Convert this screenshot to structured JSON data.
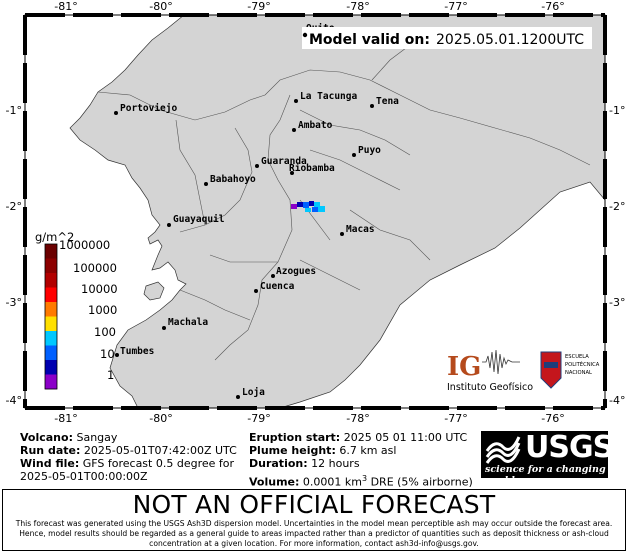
{
  "map": {
    "valid_label": "Model valid on:",
    "valid_time": "2025.05.01.1200UTC",
    "lon_ticks": [
      "-81°",
      "-80°",
      "-79°",
      "-78°",
      "-77°",
      "-76°"
    ],
    "lat_ticks": [
      "-1°",
      "-2°",
      "-3°",
      "-4°"
    ],
    "colorbar": {
      "unit": "g/m^2",
      "labels": [
        "1000000",
        "100000",
        "10000",
        "1000",
        "100",
        "10",
        "1"
      ],
      "colors": [
        "#6b0000",
        "#8c0000",
        "#b20000",
        "#ff0000",
        "#ff7a00",
        "#ffe000",
        "#00c8ff",
        "#0060ff",
        "#0000b0",
        "#8b00c8"
      ]
    },
    "cities": [
      {
        "name": "Quito"
      },
      {
        "name": "Portoviejo"
      },
      {
        "name": "La Tacunga"
      },
      {
        "name": "Tena"
      },
      {
        "name": "Ambato"
      },
      {
        "name": "Puyo"
      },
      {
        "name": "Guaranda"
      },
      {
        "name": "Riobamba"
      },
      {
        "name": "Babahoyo"
      },
      {
        "name": "Guayaquil"
      },
      {
        "name": "Macas"
      },
      {
        "name": "Azogues"
      },
      {
        "name": "Cuenca"
      },
      {
        "name": "Machala"
      },
      {
        "name": "Tumbes"
      },
      {
        "name": "Loja"
      }
    ],
    "logos": {
      "ig_text": "Instituto Geofísico",
      "epn_text": "ESCUELA POLITÉCNICA NACIONAL"
    }
  },
  "info": {
    "volcano_label": "Volcano:",
    "volcano": "Sangay",
    "run_label": "Run date:",
    "run_date": "2025-05-01T07:42:00Z UTC",
    "wind_label": "Wind file:",
    "wind_file": "GFS forecast 0.5 degree for",
    "wind_file_2": "2025-05-01T00:00:00Z",
    "eruption_label": "Eruption start:",
    "eruption_start": "2025 05 01 11:00 UTC",
    "plume_label": "Plume height:",
    "plume_height": "6.7 km asl",
    "duration_label": "Duration:",
    "duration": "12 hours",
    "volume_label": "Volume:",
    "volume_pre": "0.0001 km",
    "volume_sup": "3",
    "volume_post": " DRE (5% airborne)"
  },
  "usgs": {
    "word": "USGS",
    "tagline": "science for a changing world"
  },
  "banner": {
    "title": "NOT AN OFFICIAL FORECAST",
    "text": "This forecast was generated using the USGS Ash3D dispersion model. Uncertainties in the model mean perceptible ash may occur outside the forecast area. Hence, model results should be regarded as a general guide to areas impacted rather than a predictor of quantities such as deposit thickness or ash-cloud concentration at a given location.  For more information, contact ash3d-info@usgs.gov."
  }
}
